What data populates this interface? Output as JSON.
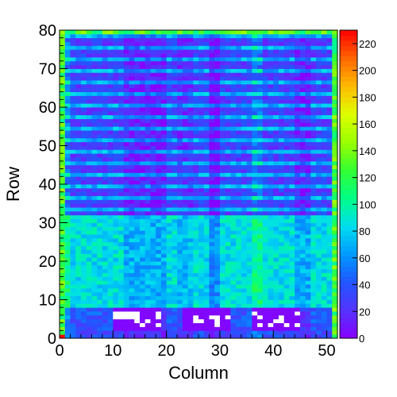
{
  "chart_data": {
    "type": "heatmap",
    "xlabel": "Column",
    "ylabel": "Row",
    "x_range": [
      0,
      52
    ],
    "y_range": [
      0,
      80
    ],
    "x_ticks": [
      "0",
      "10",
      "20",
      "30",
      "40",
      "50"
    ],
    "y_ticks": [
      "0",
      "10",
      "20",
      "30",
      "40",
      "50",
      "60",
      "70",
      "80"
    ],
    "n_columns": 52,
    "n_rows": 80,
    "color_scale": {
      "min": 0,
      "max": 230,
      "ticks": [
        "0",
        "20",
        "40",
        "60",
        "80",
        "100",
        "120",
        "140",
        "160",
        "180",
        "200",
        "220"
      ],
      "palette": [
        "#8800ff",
        "#5533ff",
        "#2255ff",
        "#0099ff",
        "#00ddee",
        "#00ff88",
        "#33ff33",
        "#99ff00",
        "#ddff00",
        "#ffbb00",
        "#ff6600",
        "#ff0000"
      ]
    },
    "row_band_levels": [
      {
        "rows": [
          0,
          2
        ],
        "level": 35
      },
      {
        "rows": [
          2,
          8
        ],
        "level": 40
      },
      {
        "rows": [
          8,
          32
        ],
        "level": 85
      },
      {
        "rows": [
          32,
          64
        ],
        "level": 42
      },
      {
        "rows": [
          64,
          80
        ],
        "level": 38
      }
    ],
    "stripe_pattern": {
      "rows": [
        32,
        80
      ],
      "period": 3,
      "high_level": 70,
      "low_level": 28
    },
    "column_modulation": [
      {
        "cols": [
          0,
          2
        ],
        "delta": 20
      },
      {
        "cols": [
          12,
          20
        ],
        "delta": -15
      },
      {
        "cols": [
          22,
          25
        ],
        "delta": -10
      },
      {
        "cols": [
          28,
          30
        ],
        "delta": -25
      },
      {
        "cols": [
          36,
          38
        ],
        "delta": 20
      },
      {
        "cols": [
          44,
          47
        ],
        "delta": -15
      },
      {
        "cols": [
          51,
          52
        ],
        "delta": 20
      }
    ],
    "dead_regions": [
      {
        "cols": [
          10,
          19
        ],
        "rows": [
          2,
          8
        ],
        "level": 3
      },
      {
        "cols": [
          23,
          32
        ],
        "rows": [
          2,
          8
        ],
        "level": 3
      },
      {
        "cols": [
          36,
          45
        ],
        "rows": [
          2,
          8
        ],
        "level": 3
      }
    ],
    "hot_spots": [
      {
        "col": 0,
        "row": 0,
        "level": 230
      }
    ]
  }
}
